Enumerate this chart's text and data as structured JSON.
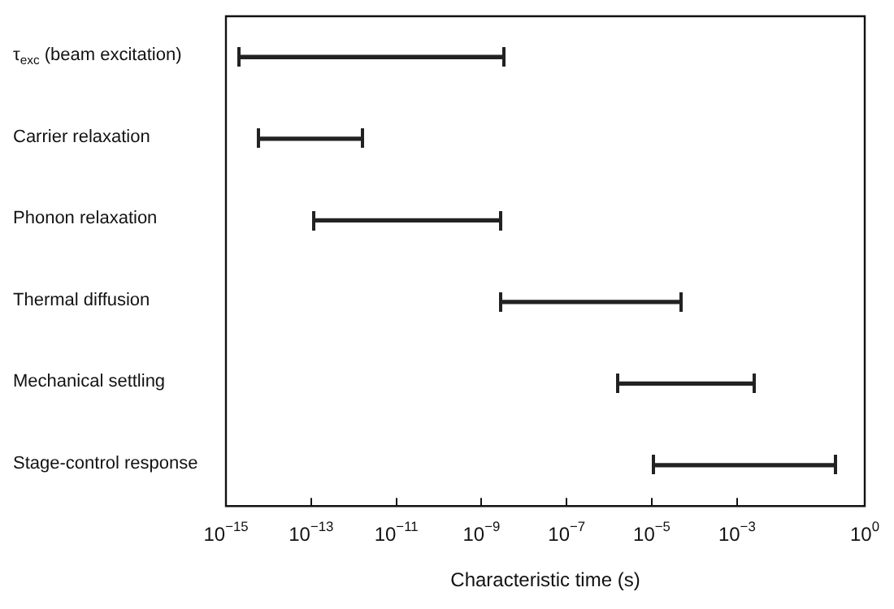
{
  "chart_data": {
    "type": "bar",
    "orientation": "horizontal",
    "log": "x",
    "xlabel": "Characteristic time (s)",
    "categories": [
      "τ$_{exc}$ (beam excitation)",
      "Carrier relaxation",
      "Phonon relaxation",
      "Thermal diffusion",
      "Mechanical settling",
      "Stage-control response"
    ],
    "base": [
      2e-15,
      6e-15,
      1.2e-13,
      2.7e-09,
      1.6e-06,
      1.1e-05
    ],
    "values": [
      3.499998e-09,
      1.594e-12,
      2.69988e-09,
      4.79973e-05,
      0.0024984,
      0.199989
    ],
    "color": "#222222",
    "xlim": [
      1e-15,
      1
    ],
    "xticks": [
      {
        "value": 1e-15,
        "label": "10$^{−15}$"
      },
      {
        "value": 1e-13,
        "label": "10$^{−13}$"
      },
      {
        "value": 1e-11,
        "label": "10$^{−11}$"
      },
      {
        "value": 1e-09,
        "label": "10$^{−9}$"
      },
      {
        "value": 1e-07,
        "label": "10$^{−7}$"
      },
      {
        "value": 1e-05,
        "label": "10$^{−5}$"
      },
      {
        "value": 0.001,
        "label": "10$^{−3}$"
      },
      {
        "value": 1,
        "label": "10$^{0}$"
      }
    ],
    "grid": false,
    "legend": false
  }
}
